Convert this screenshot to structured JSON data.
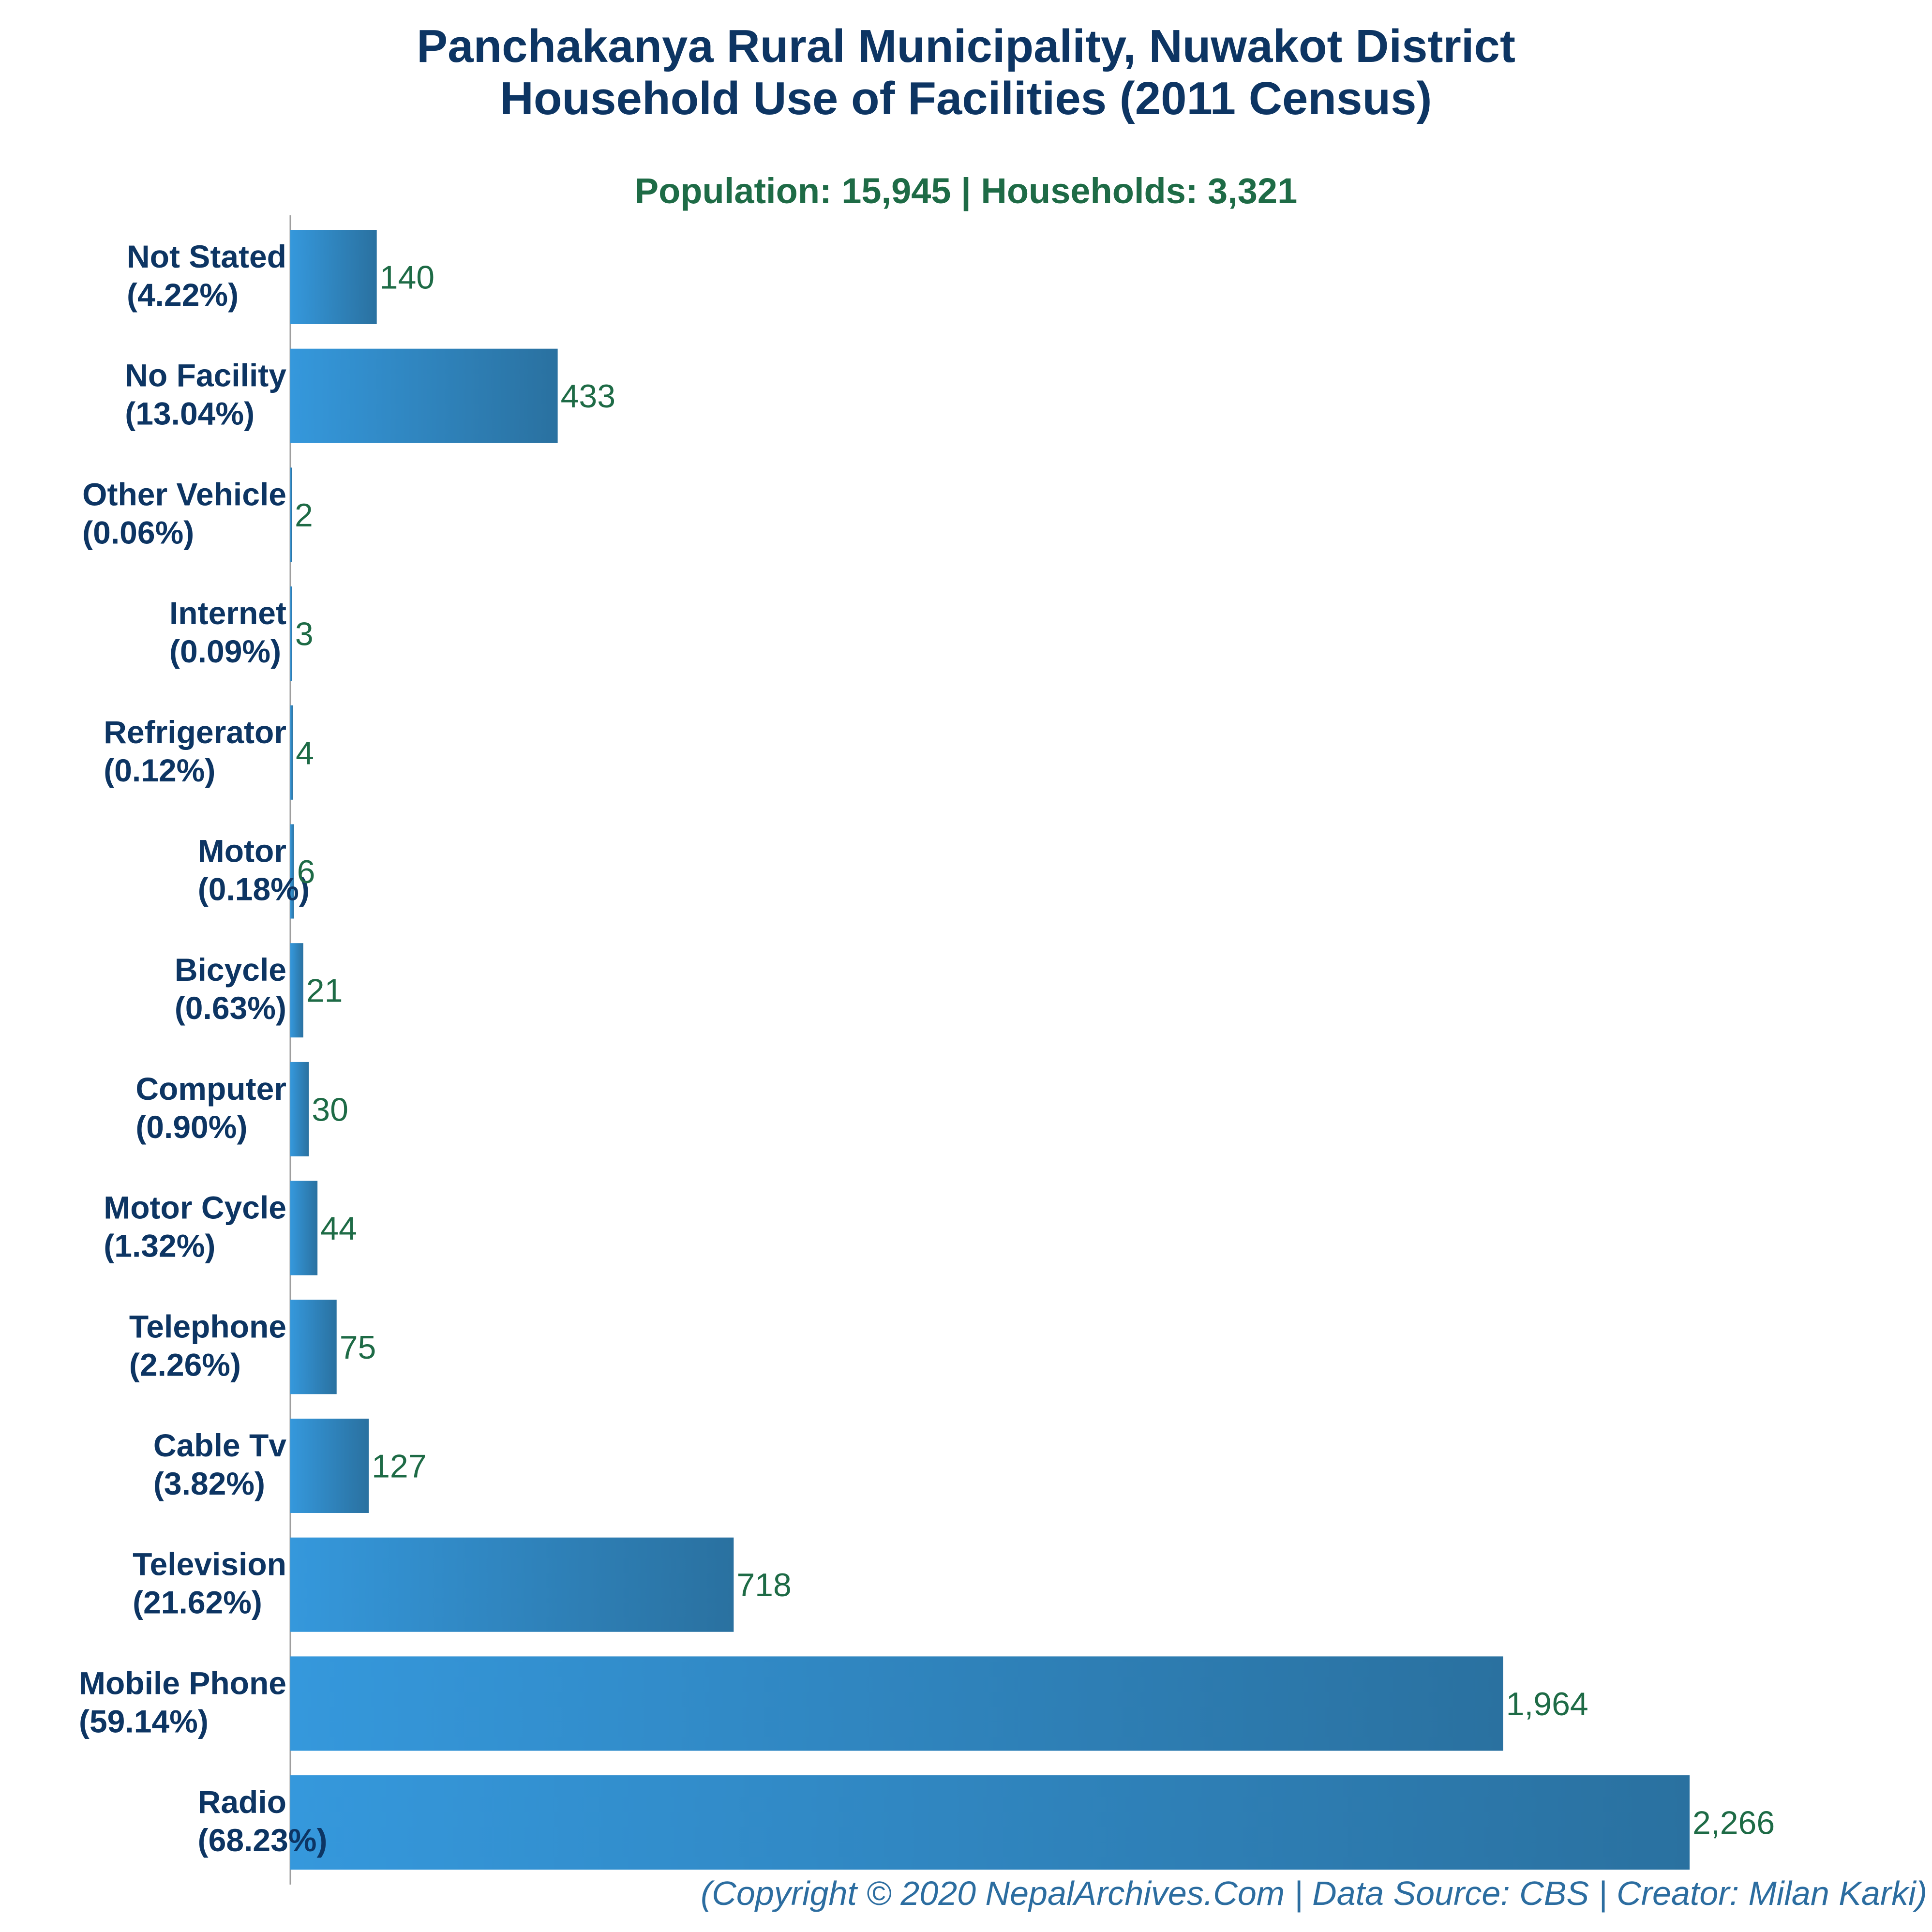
{
  "title_line1": "Panchakanya Rural Municipality, Nuwakot District",
  "title_line2": "Household Use of Facilities (2011 Census)",
  "subtitle": "Population: 15,945 | Households: 3,321",
  "footer": "(Copyright © 2020 NepalArchives.Com | Data Source: CBS | Creator: Milan Karki)",
  "colors": {
    "title": "#0d3563",
    "subtitle": "#1e6b46",
    "bar_light": "#3598dc",
    "bar_dark": "#2a71a0",
    "value_label": "#1e6b46",
    "footer": "#2c6da0"
  },
  "chart_data": {
    "type": "bar",
    "orientation": "horizontal",
    "categories": [
      "Not Stated",
      "No Facility",
      "Other Vehicle",
      "Internet",
      "Refrigerator",
      "Motor",
      "Bicycle",
      "Computer",
      "Motor Cycle",
      "Telephone",
      "Cable Tv",
      "Television",
      "Mobile Phone",
      "Radio"
    ],
    "percent_labels": [
      "(4.22%)",
      "(13.04%)",
      "(0.06%)",
      "(0.09%)",
      "(0.12%)",
      "(0.18%)",
      "(0.63%)",
      "(0.90%)",
      "(1.32%)",
      "(2.26%)",
      "(3.82%)",
      "(21.62%)",
      "(59.14%)",
      "(68.23%)"
    ],
    "values": [
      140,
      433,
      2,
      3,
      4,
      6,
      21,
      30,
      44,
      75,
      127,
      718,
      1964,
      2266
    ],
    "value_labels": [
      "140",
      "433",
      "2",
      "3",
      "4",
      "6",
      "21",
      "30",
      "44",
      "75",
      "127",
      "718",
      "1,964",
      "2,266"
    ],
    "xlim": [
      0,
      2266
    ],
    "grid": false,
    "legend": "none"
  }
}
